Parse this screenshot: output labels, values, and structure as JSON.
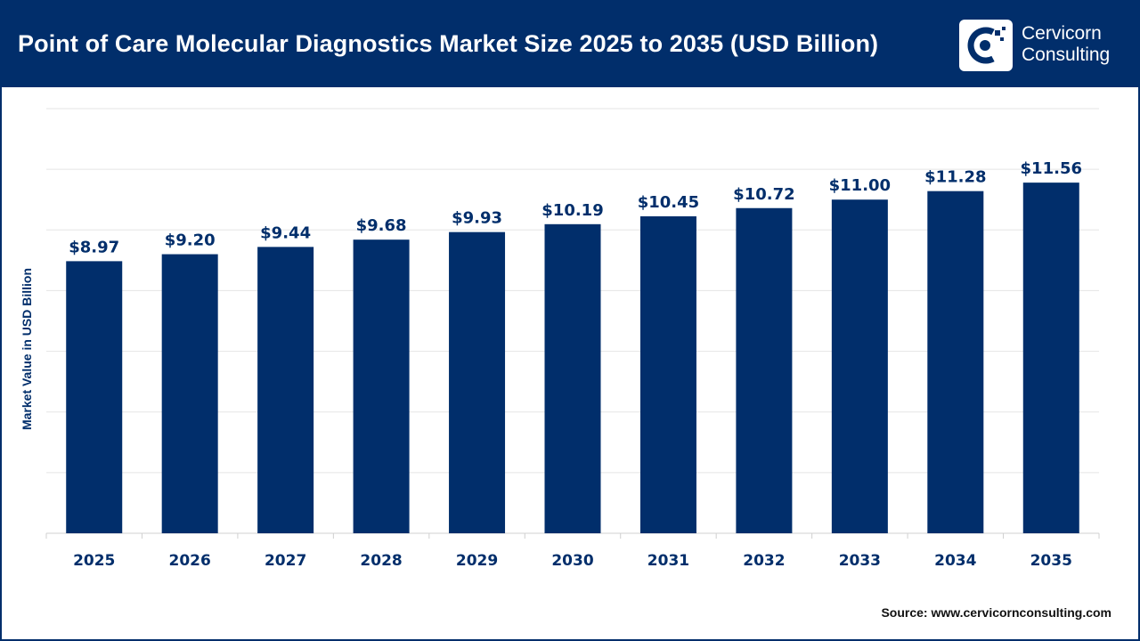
{
  "header": {
    "title": "Point of Care Molecular Diagnostics Market Size 2025 to 2035 (USD Billion)",
    "logo_line1": "Cervicorn",
    "logo_line2": "Consulting",
    "logo_icon": "cervicorn-logo-icon"
  },
  "footer": {
    "source": "Source: www.cervicornconsulting.com"
  },
  "colors": {
    "bar": "#012E6B",
    "header_bg": "#012E6B",
    "grid": "#E5E5E5"
  },
  "chart_data": {
    "type": "bar",
    "title": "Point of Care Molecular Diagnostics Market Size 2025 to 2035 (USD Billion)",
    "xlabel": "",
    "ylabel": "Market Value in USD Billion",
    "categories": [
      "2025",
      "2026",
      "2027",
      "2028",
      "2029",
      "2030",
      "2031",
      "2032",
      "2033",
      "2034",
      "2035"
    ],
    "values": [
      8.97,
      9.2,
      9.44,
      9.68,
      9.93,
      10.19,
      10.45,
      10.72,
      11.0,
      11.28,
      11.56
    ],
    "value_labels": [
      "$8.97",
      "$9.20",
      "$9.44",
      "$9.68",
      "$9.93",
      "$10.19",
      "$10.45",
      "$10.72",
      "$11.00",
      "$11.28",
      "$11.56"
    ],
    "ylim": [
      0,
      14
    ],
    "grid": true,
    "legend": "none"
  }
}
